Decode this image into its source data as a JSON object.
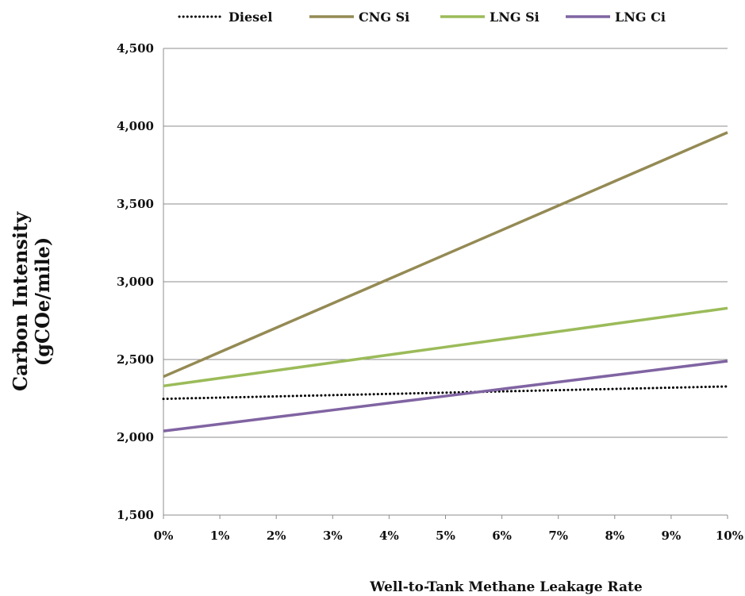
{
  "chart_data": {
    "type": "line",
    "x_categories": [
      "0%",
      "1%",
      "2%",
      "3%",
      "4%",
      "5%",
      "6%",
      "7%",
      "8%",
      "9%",
      "10%"
    ],
    "x": [
      0,
      1,
      2,
      3,
      4,
      5,
      6,
      7,
      8,
      9,
      10
    ],
    "xlabel": "Well-to-Tank Methane Leakage Rate",
    "ylabel_line1": "Carbon Intensity",
    "ylabel_line2": "(gCOe/mile)",
    "ylim": [
      1500,
      4500
    ],
    "y_ticks": [
      1500,
      2000,
      2500,
      3000,
      3500,
      4000,
      4500
    ],
    "y_tick_labels": [
      "1,500",
      "2,000",
      "2,500",
      "3,000",
      "3,500",
      "4,000",
      "4,500"
    ],
    "grid": "horizontal",
    "legend_position": "top",
    "series": [
      {
        "name": "Diesel",
        "color": "#000000",
        "style": "dotted",
        "values": [
          2247,
          2255,
          2263,
          2271,
          2279,
          2287,
          2295,
          2303,
          2311,
          2319,
          2327
        ]
      },
      {
        "name": "CNG Si",
        "color": "#948a54",
        "style": "solid",
        "values": [
          2390,
          2547,
          2704,
          2861,
          3018,
          3175,
          3332,
          3489,
          3646,
          3803,
          3960
        ]
      },
      {
        "name": "LNG Si",
        "color": "#9bbb59",
        "style": "solid",
        "values": [
          2330,
          2380,
          2430,
          2480,
          2530,
          2580,
          2630,
          2680,
          2730,
          2780,
          2830
        ]
      },
      {
        "name": "LNG Ci",
        "color": "#8064a2",
        "style": "solid",
        "values": [
          2040,
          2085,
          2130,
          2175,
          2220,
          2265,
          2310,
          2355,
          2400,
          2445,
          2490
        ]
      }
    ]
  }
}
